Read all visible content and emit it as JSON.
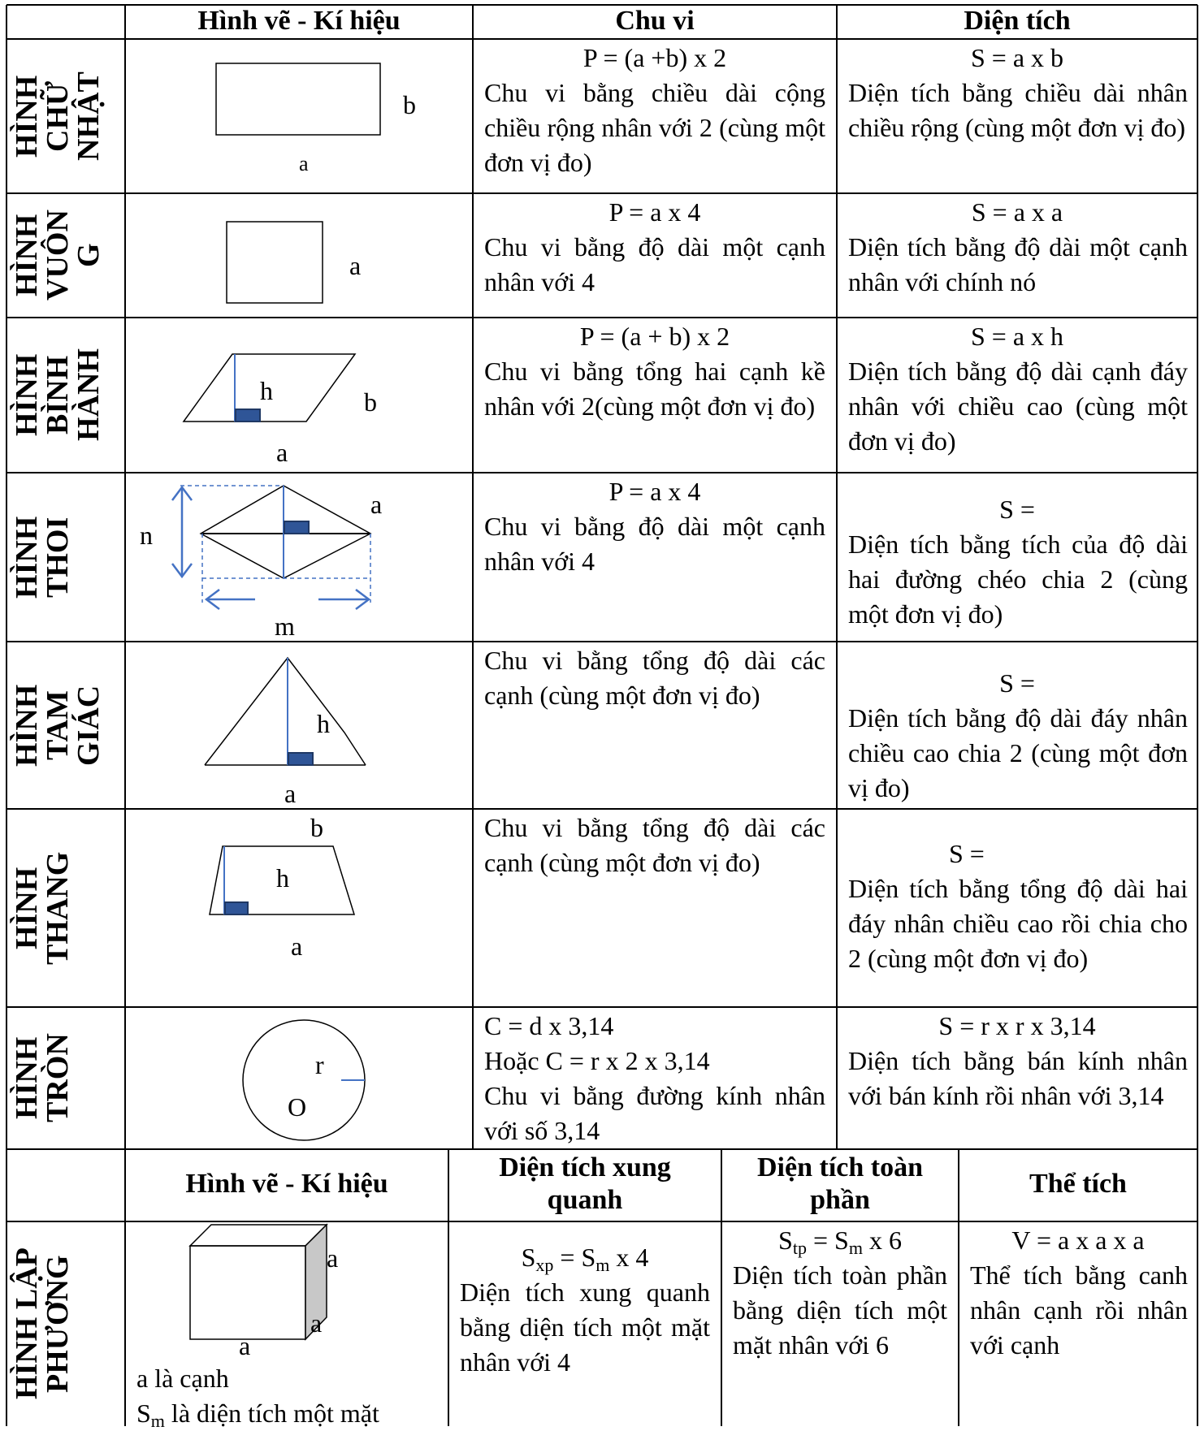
{
  "table1": {
    "headers": [
      "Hình vẽ - Kí hiệu",
      "Chu vi",
      "Diện tích"
    ],
    "rows": [
      {
        "shape": "HÌNH\nCHỮ\nNHẬT",
        "labels": [
          "b",
          "a"
        ],
        "perimeter_formula": "P = (a +b) x 2",
        "perimeter_text": "Chu vi bằng chiều dài cộng chiều rộng nhân với 2 (cùng một đơn vị đo)",
        "area_formula": "S = a x b",
        "area_text": "Diện tích bằng chiều dài nhân chiều rộng (cùng một đơn vị đo)"
      },
      {
        "shape": "HÌNH\nVUÔN\nG",
        "labels": [
          "a"
        ],
        "perimeter_formula": "P = a x 4",
        "perimeter_text": "Chu vi bằng độ dài một cạnh nhân với 4",
        "area_formula": "S = a x a",
        "area_text": "Diện tích bằng độ dài một cạnh nhân với chính nó"
      },
      {
        "shape": "HÌNH\nBÌNH\nHÀNH",
        "labels": [
          "h",
          "b",
          "a"
        ],
        "perimeter_formula": "P = (a + b) x 2",
        "perimeter_text": "Chu vi bằng tổng hai cạnh kề nhân với 2(cùng một đơn vị đo)",
        "area_formula": "S = a x h",
        "area_text": "Diện tích bằng độ dài cạnh đáy nhân với chiều cao (cùng một đơn vị đo)"
      },
      {
        "shape": "HÌNH\nTHOI",
        "labels": [
          "a",
          "n",
          "m"
        ],
        "perimeter_formula": "P = a x 4",
        "perimeter_text": "Chu vi bằng độ dài một cạnh nhân với 4",
        "area_formula": "S =",
        "area_text": "Diện tích bằng tích của độ dài hai đường chéo chia 2 (cùng một đơn vị đo)"
      },
      {
        "shape": "HÌNH\nTAM\nGIÁC",
        "labels": [
          "h",
          "a"
        ],
        "perimeter_text": "Chu vi bằng tổng độ dài các cạnh (cùng một đơn vị đo)",
        "area_formula": "S =",
        "area_text": "Diện tích bằng độ dài đáy nhân chiều cao chia 2 (cùng một đơn vị đo)"
      },
      {
        "shape": "HÌNH\nTHANG",
        "labels": [
          "b",
          "h",
          "a"
        ],
        "perimeter_text": "Chu vi bằng tổng độ dài các cạnh (cùng một đơn vị đo)",
        "area_formula": "S =",
        "area_text": "Diện tích bằng tổng độ dài hai đáy nhân chiều cao rồi chia cho 2 (cùng một đơn vị đo)"
      },
      {
        "shape": "HÌNH\nTRÒN",
        "labels": [
          "r",
          "O"
        ],
        "perimeter_lines": [
          "C = d x 3,14",
          "Hoặc C = r x 2 x 3,14"
        ],
        "perimeter_text": "Chu vi bằng đường kính nhân với số 3,14",
        "area_formula": "S = r x r x 3,14",
        "area_text": "Diện tích bằng bán kính nhân với bán kính rồi nhân với 3,14"
      }
    ]
  },
  "table2": {
    "headers": [
      "Hình vẽ - Kí hiệu",
      "Diện tích xung quanh",
      "Diện tích toàn phần",
      "Thể tích"
    ],
    "row": {
      "shape": "HÌNH LẬP\nPHƯƠNG",
      "labels": [
        "a",
        "a",
        "a"
      ],
      "note1": "a là cạnh",
      "note2_main": "S",
      "note2_sub": "m",
      "note2_rest": " là diện tích một mặt",
      "sxp_S": "S",
      "sxp_sub": "xp",
      "sxp_eq": " = S",
      "sxp_m": "m",
      "sxp_tail": " x 4",
      "sxp_text": "Diện tích xung quanh bằng diện tích một mặt nhân với 4",
      "stp_S": "S",
      "stp_sub": "tp",
      "stp_eq": " = S",
      "stp_m": "m",
      "stp_tail": " x 6",
      "stp_text": "Diện tích toàn phần bằng diện tích một mặt nhân với 6",
      "vol_formula": "V = a x a x a",
      "vol_text": "Thể tích bằng canh nhân cạnh rồi nhân với cạnh"
    }
  }
}
